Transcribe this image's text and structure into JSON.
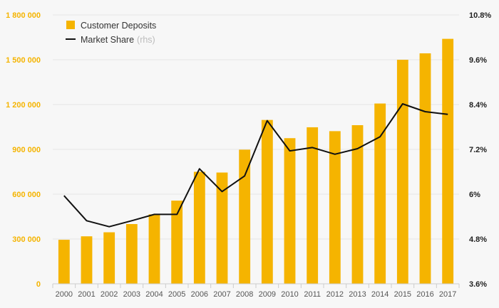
{
  "chart_data": {
    "type": "bar",
    "categories": [
      "2000",
      "2001",
      "2002",
      "2003",
      "2004",
      "2005",
      "2006",
      "2007",
      "2008",
      "2009",
      "2010",
      "2011",
      "2012",
      "2013",
      "2014",
      "2015",
      "2016",
      "2017"
    ],
    "series": [
      {
        "name": "Customer Deposits",
        "kind": "bar",
        "axis": "left",
        "color": "#f5b400",
        "values": [
          295000,
          318000,
          345000,
          400000,
          465000,
          557000,
          750000,
          745000,
          898000,
          1097000,
          975000,
          1048000,
          1022000,
          1062000,
          1207000,
          1500000,
          1543000,
          1640000
        ]
      },
      {
        "name": "Market Share",
        "note": "(rhs)",
        "kind": "line",
        "axis": "right",
        "color": "#111111",
        "values": [
          5.96,
          5.29,
          5.13,
          5.29,
          5.46,
          5.46,
          6.68,
          6.07,
          6.49,
          7.97,
          7.16,
          7.25,
          7.07,
          7.22,
          7.54,
          8.42,
          8.21,
          8.14
        ]
      }
    ],
    "y_left": {
      "ylim": [
        0,
        1800000
      ],
      "ticks": [
        0,
        300000,
        600000,
        900000,
        1200000,
        1500000,
        1800000
      ],
      "tick_labels": [
        "0",
        "300 000",
        "600 000",
        "900 000",
        "1 200 000",
        "1 500 000",
        "1 800 000"
      ]
    },
    "y_right": {
      "ylim": [
        3.6,
        10.8
      ],
      "ticks": [
        3.6,
        4.8,
        6,
        7.2,
        8.4,
        9.6,
        10.8
      ],
      "tick_labels": [
        "3.6%",
        "4.8%",
        "6%",
        "7.2%",
        "8.4%",
        "9.6%",
        "10.8%"
      ]
    },
    "legend": {
      "position": "top-left",
      "entries": [
        {
          "label": "Customer Deposits",
          "marker": "square",
          "color": "#f5b400"
        },
        {
          "label": "Market Share",
          "note": "(rhs)",
          "marker": "line",
          "color": "#111111"
        }
      ]
    },
    "grid": true,
    "title": "",
    "xlabel": "",
    "ylabel": ""
  }
}
